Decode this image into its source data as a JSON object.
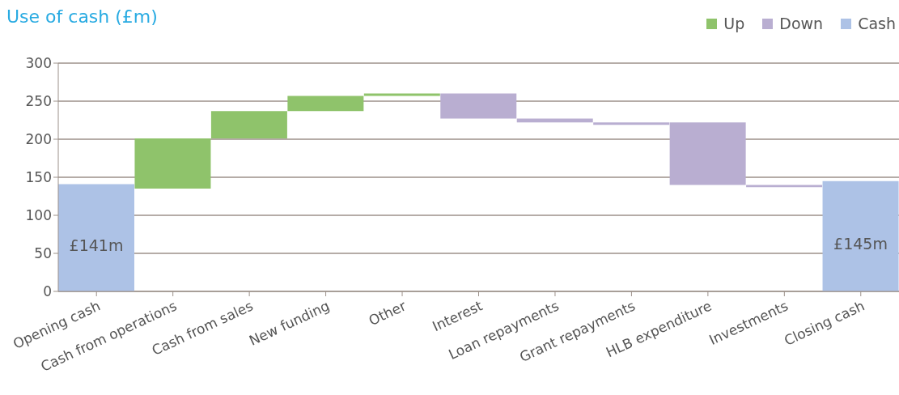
{
  "chart_data": {
    "type": "bar",
    "title": "Use of cash (£m)",
    "categories": [
      "Opening cash",
      "Cash from operations",
      "Cash from sales",
      "New funding",
      "Other",
      "Interest",
      "Loan repayments",
      "Grant repayments",
      "HLB expenditure",
      "Investments",
      "Closing cash"
    ],
    "series": [
      {
        "name": "Up",
        "color": "#8fc36b",
        "values": [
          null,
          66,
          36,
          20,
          3,
          null,
          null,
          null,
          null,
          null,
          null
        ],
        "base": [
          null,
          135,
          201,
          237,
          257,
          null,
          null,
          null,
          null,
          null,
          null
        ]
      },
      {
        "name": "Down",
        "color": "#b9aed1",
        "values": [
          null,
          null,
          null,
          null,
          null,
          33,
          5,
          3,
          82,
          3,
          null
        ],
        "base": [
          null,
          null,
          null,
          null,
          null,
          227,
          222,
          219,
          140,
          137,
          null
        ]
      },
      {
        "name": "Cash",
        "color": "#adc2e6",
        "values": [
          141,
          null,
          null,
          null,
          null,
          null,
          null,
          null,
          null,
          null,
          145
        ],
        "base": [
          0,
          null,
          null,
          null,
          null,
          null,
          null,
          null,
          null,
          null,
          0
        ],
        "value_labels": [
          "£141m",
          null,
          null,
          null,
          null,
          null,
          null,
          null,
          null,
          null,
          "£145m"
        ]
      }
    ],
    "ylim": [
      0,
      300
    ],
    "yticks": [
      0,
      50,
      100,
      150,
      200,
      250,
      300
    ],
    "grid": "y",
    "legend": "top right"
  }
}
